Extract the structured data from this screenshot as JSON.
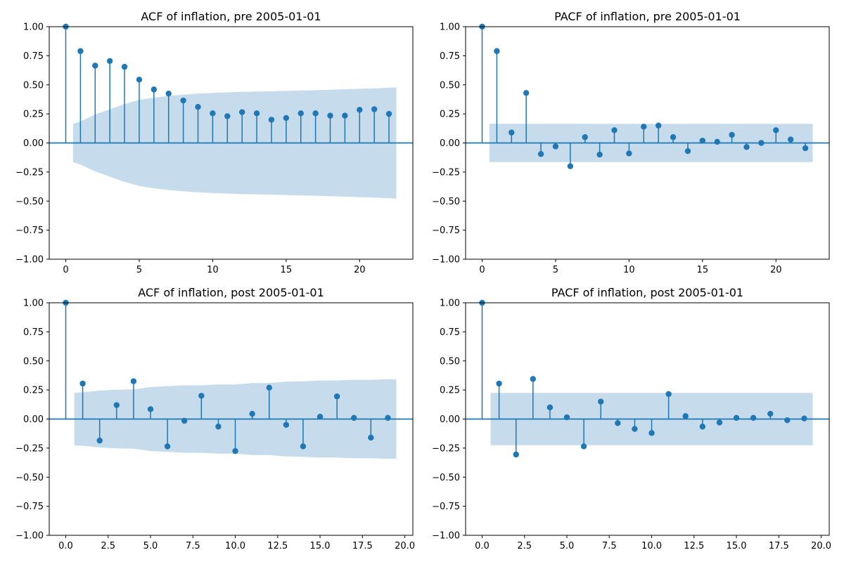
{
  "figure": {
    "colors": {
      "stem": "#1f77b4",
      "band": "#c6dbeb",
      "zero_line": "#1f77b4",
      "axes": "#000000"
    }
  },
  "chart_data": [
    {
      "type": "stem",
      "title": "ACF of inflation, pre 2005-01-01",
      "xlabel": "",
      "ylabel": "",
      "xlim": [
        -1.125,
        23.625
      ],
      "ylim": [
        -1.0,
        1.0
      ],
      "x_ticks": [
        0,
        5,
        10,
        15,
        20
      ],
      "x_tick_labels": [
        "0",
        "5",
        "10",
        "15",
        "20"
      ],
      "y_ticks": [
        -1.0,
        -0.75,
        -0.5,
        -0.25,
        0.0,
        0.25,
        0.5,
        0.75,
        1.0
      ],
      "y_tick_labels": [
        "−1.00",
        "−0.75",
        "−0.50",
        "−0.25",
        "0.00",
        "0.25",
        "0.50",
        "0.75",
        "1.00"
      ],
      "lags": [
        0,
        1,
        2,
        3,
        4,
        5,
        6,
        7,
        8,
        9,
        10,
        11,
        12,
        13,
        14,
        15,
        16,
        17,
        18,
        19,
        20,
        21,
        22
      ],
      "values": [
        1.0,
        0.79,
        0.665,
        0.705,
        0.655,
        0.545,
        0.46,
        0.425,
        0.365,
        0.31,
        0.255,
        0.23,
        0.265,
        0.255,
        0.2,
        0.215,
        0.255,
        0.255,
        0.235,
        0.235,
        0.285,
        0.29,
        0.25
      ],
      "confidence_band": {
        "x": [
          0.5,
          1,
          2,
          3,
          4,
          5,
          6,
          7,
          8,
          9,
          10,
          11,
          12,
          13,
          14,
          15,
          16,
          17,
          18,
          19,
          20,
          21,
          22,
          22.5
        ],
        "upper": [
          0.165,
          0.185,
          0.245,
          0.29,
          0.335,
          0.37,
          0.39,
          0.405,
          0.415,
          0.425,
          0.43,
          0.435,
          0.44,
          0.442,
          0.445,
          0.448,
          0.451,
          0.454,
          0.458,
          0.462,
          0.466,
          0.47,
          0.475,
          0.478
        ]
      }
    },
    {
      "type": "stem",
      "title": "PACF of inflation, pre 2005-01-01",
      "xlabel": "",
      "ylabel": "",
      "xlim": [
        -1.125,
        23.625
      ],
      "ylim": [
        -1.0,
        1.0
      ],
      "x_ticks": [
        0,
        5,
        10,
        15,
        20
      ],
      "x_tick_labels": [
        "0",
        "5",
        "10",
        "15",
        "20"
      ],
      "y_ticks": [
        -1.0,
        -0.75,
        -0.5,
        -0.25,
        0.0,
        0.25,
        0.5,
        0.75,
        1.0
      ],
      "y_tick_labels": [
        "−1.00",
        "−0.75",
        "−0.50",
        "−0.25",
        "0.00",
        "0.25",
        "0.50",
        "0.75",
        "1.00"
      ],
      "lags": [
        0,
        1,
        2,
        3,
        4,
        5,
        6,
        7,
        8,
        9,
        10,
        11,
        12,
        13,
        14,
        15,
        16,
        17,
        18,
        19,
        20,
        21,
        22
      ],
      "values": [
        1.0,
        0.79,
        0.09,
        0.43,
        -0.095,
        -0.03,
        -0.2,
        0.05,
        -0.1,
        0.11,
        -0.09,
        0.14,
        0.15,
        0.05,
        -0.07,
        0.02,
        0.01,
        0.07,
        -0.035,
        0.0,
        0.11,
        0.03,
        -0.045
      ],
      "confidence_band": {
        "x": [
          0.5,
          22.5
        ],
        "upper": [
          0.165,
          0.165
        ]
      }
    },
    {
      "type": "stem",
      "title": "ACF of inflation, post 2005-01-01",
      "xlabel": "",
      "ylabel": "",
      "xlim": [
        -0.975,
        20.475
      ],
      "ylim": [
        -1.0,
        1.0
      ],
      "x_ticks": [
        0,
        2.5,
        5,
        7.5,
        10,
        12.5,
        15,
        17.5,
        20
      ],
      "x_tick_labels": [
        "0.0",
        "2.5",
        "5.0",
        "7.5",
        "10.0",
        "12.5",
        "15.0",
        "17.5",
        "20.0"
      ],
      "y_ticks": [
        -1.0,
        -0.75,
        -0.5,
        -0.25,
        0.0,
        0.25,
        0.5,
        0.75,
        1.0
      ],
      "y_tick_labels": [
        "−1.00",
        "−0.75",
        "−0.50",
        "−0.25",
        "0.00",
        "0.25",
        "0.50",
        "0.75",
        "1.00"
      ],
      "lags": [
        0,
        1,
        2,
        3,
        4,
        5,
        6,
        7,
        8,
        9,
        10,
        11,
        12,
        13,
        14,
        15,
        16,
        17,
        18,
        19
      ],
      "values": [
        1.0,
        0.305,
        -0.185,
        0.12,
        0.325,
        0.085,
        -0.235,
        -0.015,
        0.2,
        -0.065,
        -0.275,
        0.045,
        0.27,
        -0.05,
        -0.235,
        0.02,
        0.195,
        0.01,
        -0.16,
        0.01
      ],
      "confidence_band": {
        "x": [
          0.5,
          1,
          2,
          3,
          4,
          5,
          6,
          7,
          8,
          9,
          10,
          11,
          12,
          13,
          14,
          15,
          16,
          17,
          18,
          19,
          19.5
        ],
        "upper": [
          0.225,
          0.23,
          0.245,
          0.252,
          0.255,
          0.275,
          0.282,
          0.29,
          0.29,
          0.298,
          0.298,
          0.31,
          0.31,
          0.322,
          0.325,
          0.332,
          0.332,
          0.338,
          0.338,
          0.342,
          0.342
        ]
      }
    },
    {
      "type": "stem",
      "title": "PACF of inflation, post 2005-01-01",
      "xlabel": "",
      "ylabel": "",
      "xlim": [
        -0.975,
        20.475
      ],
      "ylim": [
        -1.0,
        1.0
      ],
      "x_ticks": [
        0,
        2.5,
        5,
        7.5,
        10,
        12.5,
        15,
        17.5,
        20
      ],
      "x_tick_labels": [
        "0.0",
        "2.5",
        "5.0",
        "7.5",
        "10.0",
        "12.5",
        "15.0",
        "17.5",
        "20.0"
      ],
      "y_ticks": [
        -1.0,
        -0.75,
        -0.5,
        -0.25,
        0.0,
        0.25,
        0.5,
        0.75,
        1.0
      ],
      "y_tick_labels": [
        "−1.00",
        "−0.75",
        "−0.50",
        "−0.25",
        "0.00",
        "0.25",
        "0.50",
        "0.75",
        "1.00"
      ],
      "lags": [
        0,
        1,
        2,
        3,
        4,
        5,
        6,
        7,
        8,
        9,
        10,
        11,
        12,
        13,
        14,
        15,
        16,
        17,
        18,
        19
      ],
      "values": [
        1.0,
        0.305,
        -0.305,
        0.345,
        0.1,
        0.015,
        -0.235,
        0.15,
        -0.035,
        -0.085,
        -0.12,
        0.215,
        0.025,
        -0.065,
        -0.03,
        0.01,
        0.01,
        0.045,
        -0.01,
        0.005
      ],
      "confidence_band": {
        "x": [
          0.5,
          19.5
        ],
        "upper": [
          0.225,
          0.225
        ]
      }
    }
  ]
}
